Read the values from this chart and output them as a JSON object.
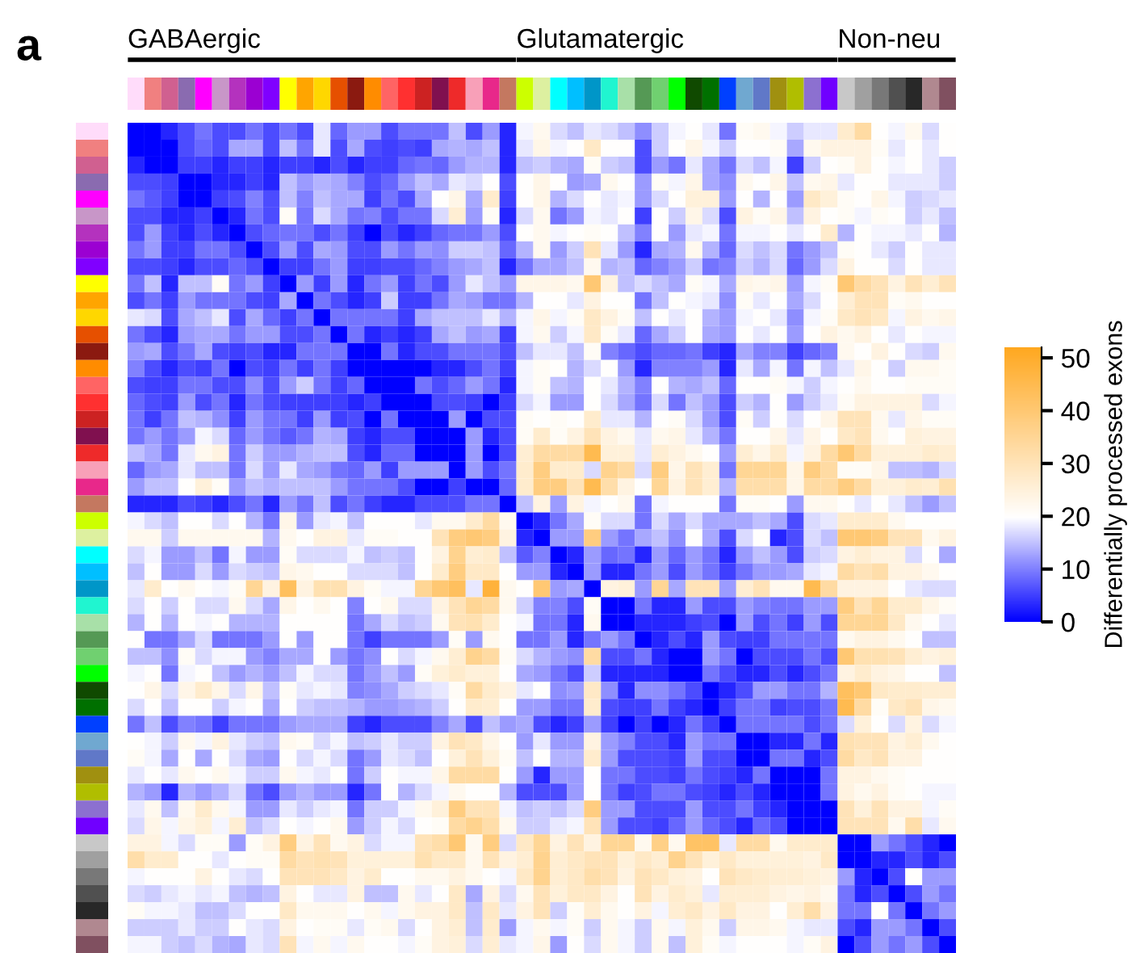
{
  "chart_data": {
    "type": "heatmap",
    "annotations": [
      "a",
      "GABAergic",
      "Glutamatergic",
      "Non-neu"
    ],
    "clabel": "Differentially processed exons",
    "clim": [
      0,
      52
    ],
    "cticks": [
      0,
      10,
      20,
      30,
      40,
      50
    ],
    "categories": [
      null,
      null,
      null,
      null,
      null,
      null,
      null,
      null,
      null,
      null,
      null,
      null,
      null,
      null,
      null,
      null,
      null,
      null,
      null,
      null,
      null,
      null,
      null,
      null,
      null,
      null,
      null,
      null,
      null,
      null,
      null,
      null,
      null,
      null,
      null,
      null,
      null,
      null,
      null,
      null,
      null,
      null,
      null,
      null,
      null,
      null,
      null,
      null,
      null
    ],
    "y_categories": [
      null,
      null,
      null,
      null,
      null,
      null,
      null,
      null,
      null,
      null,
      null,
      null,
      null,
      null,
      null,
      null,
      null,
      null,
      null,
      null,
      null,
      null,
      null,
      null,
      null,
      null,
      null,
      null,
      null,
      null,
      null,
      null,
      null,
      null,
      null,
      null,
      null,
      null,
      null,
      null,
      null,
      null,
      null,
      null,
      null,
      null,
      null,
      null,
      null
    ],
    "cells": [
      [
        0,
        0,
        3,
        6,
        9,
        6,
        6,
        9,
        6,
        9,
        6,
        18,
        8,
        12,
        12,
        6,
        9,
        9,
        9,
        15,
        6,
        12,
        3,
        19,
        22,
        17,
        15,
        18,
        17,
        15,
        11,
        16,
        19,
        20,
        18,
        9,
        21,
        22,
        19,
        16,
        18,
        18,
        27,
        33,
        20,
        19,
        22,
        17,
        20
      ],
      [
        0,
        0,
        0,
        6,
        8,
        6,
        13,
        13,
        6,
        15,
        9,
        18,
        6,
        13,
        6,
        5,
        6,
        5,
        13,
        14,
        13,
        15,
        3,
        18,
        23,
        19,
        20,
        28,
        20,
        20,
        6,
        16,
        20,
        23,
        19,
        16,
        20,
        20,
        21,
        13,
        22,
        24,
        24,
        24,
        21,
        18,
        20,
        18,
        20
      ],
      [
        3,
        0,
        0,
        5,
        5,
        3,
        5,
        5,
        3,
        5,
        5,
        3,
        6,
        3,
        5,
        5,
        8,
        9,
        8,
        12,
        14,
        14,
        3,
        15,
        16,
        14,
        13,
        21,
        16,
        15,
        6,
        12,
        9,
        18,
        13,
        9,
        17,
        15,
        19,
        5,
        16,
        20,
        21,
        24,
        20,
        19,
        20,
        18,
        16
      ],
      [
        6,
        6,
        5,
        0,
        0,
        3,
        3,
        5,
        3,
        15,
        12,
        14,
        13,
        10,
        6,
        8,
        12,
        15,
        13,
        18,
        17,
        20,
        6,
        20,
        23,
        20,
        12,
        13,
        22,
        20,
        12,
        21,
        19,
        23,
        13,
        11,
        22,
        20,
        23,
        15,
        22,
        23,
        18,
        20,
        20,
        18,
        18,
        18,
        16
      ],
      [
        9,
        7,
        5,
        0,
        0,
        5,
        6,
        10,
        6,
        15,
        10,
        15,
        13,
        13,
        5,
        9,
        6,
        13,
        20,
        23,
        13,
        27,
        5,
        20,
        23,
        14,
        17,
        20,
        18,
        19,
        12,
        17,
        20,
        25,
        25,
        12,
        20,
        14,
        20,
        12,
        28,
        25,
        21,
        20,
        23,
        19,
        16,
        17,
        18
      ],
      [
        6,
        6,
        3,
        3,
        5,
        0,
        3,
        9,
        6,
        21,
        9,
        17,
        13,
        9,
        10,
        6,
        9,
        9,
        17,
        26,
        12,
        21,
        3,
        17,
        22,
        9,
        12,
        19,
        18,
        20,
        5,
        20,
        16,
        23,
        17,
        6,
        24,
        21,
        23,
        15,
        24,
        20,
        21,
        19,
        21,
        20,
        16,
        18,
        15
      ],
      [
        6,
        12,
        5,
        3,
        6,
        3,
        0,
        6,
        8,
        9,
        9,
        6,
        9,
        5,
        0,
        6,
        3,
        5,
        8,
        9,
        9,
        12,
        6,
        20,
        22,
        19,
        20,
        21,
        20,
        15,
        10,
        20,
        12,
        18,
        19,
        9,
        19,
        19,
        20,
        18,
        20,
        27,
        14,
        20,
        19,
        19,
        18,
        20,
        14
      ],
      [
        9,
        12,
        5,
        5,
        9,
        9,
        6,
        0,
        6,
        12,
        6,
        13,
        12,
        6,
        6,
        12,
        9,
        12,
        11,
        16,
        16,
        15,
        8,
        14,
        22,
        12,
        16,
        30,
        18,
        12,
        3,
        13,
        14,
        22,
        14,
        8,
        17,
        15,
        17,
        9,
        12,
        15,
        21,
        20,
        18,
        16,
        20,
        18,
        18
      ],
      [
        6,
        6,
        5,
        3,
        6,
        6,
        8,
        6,
        0,
        5,
        5,
        9,
        12,
        5,
        5,
        6,
        6,
        8,
        10,
        12,
        13,
        15,
        3,
        9,
        13,
        13,
        15,
        22,
        14,
        15,
        8,
        10,
        12,
        16,
        9,
        10,
        16,
        14,
        17,
        8,
        12,
        17,
        24,
        20,
        20,
        17,
        20,
        18,
        18
      ],
      [
        9,
        15,
        3,
        15,
        15,
        21,
        9,
        12,
        5,
        0,
        12,
        5,
        12,
        3,
        9,
        12,
        5,
        9,
        6,
        12,
        18,
        15,
        12,
        23,
        23,
        23,
        22,
        40,
        24,
        15,
        17,
        15,
        13,
        21,
        19,
        13,
        23,
        22,
        23,
        12,
        19,
        21,
        40,
        33,
        30,
        24,
        30,
        26,
        30
      ],
      [
        6,
        9,
        5,
        12,
        9,
        9,
        9,
        6,
        5,
        13,
        0,
        9,
        6,
        3,
        5,
        16,
        5,
        5,
        9,
        13,
        12,
        9,
        9,
        14,
        20,
        20,
        18,
        24,
        20,
        20,
        9,
        15,
        20,
        19,
        18,
        11,
        21,
        18,
        20,
        13,
        17,
        20,
        26,
        30,
        30,
        21,
        22,
        20,
        20
      ],
      [
        18,
        17,
        6,
        13,
        15,
        18,
        6,
        13,
        8,
        5,
        9,
        0,
        9,
        9,
        9,
        9,
        5,
        13,
        15,
        15,
        15,
        18,
        14,
        19,
        23,
        19,
        21,
        28,
        24,
        21,
        15,
        20,
        18,
        20,
        14,
        12,
        19,
        20,
        18,
        11,
        19,
        21,
        28,
        30,
        28,
        19,
        24,
        22,
        23
      ],
      [
        9,
        6,
        3,
        12,
        13,
        13,
        9,
        12,
        12,
        6,
        6,
        9,
        0,
        9,
        3,
        5,
        3,
        5,
        13,
        15,
        12,
        13,
        5,
        19,
        22,
        16,
        19,
        28,
        21,
        18,
        8,
        13,
        16,
        20,
        13,
        12,
        20,
        18,
        20,
        12,
        20,
        24,
        22,
        24,
        20,
        18,
        20,
        19,
        19
      ],
      [
        12,
        13,
        6,
        9,
        13,
        6,
        5,
        6,
        3,
        3,
        9,
        9,
        9,
        0,
        0,
        9,
        3,
        6,
        6,
        9,
        9,
        9,
        6,
        15,
        18,
        18,
        15,
        21,
        10,
        8,
        6,
        8,
        8,
        9,
        5,
        3,
        13,
        10,
        10,
        5,
        8,
        10,
        22,
        20,
        24,
        20,
        17,
        16,
        22
      ],
      [
        10,
        6,
        3,
        6,
        5,
        9,
        0,
        6,
        5,
        9,
        5,
        9,
        5,
        0,
        0,
        0,
        0,
        0,
        3,
        3,
        6,
        9,
        5,
        19,
        21,
        20,
        14,
        17,
        20,
        12,
        3,
        10,
        10,
        10,
        12,
        3,
        18,
        13,
        19,
        9,
        19,
        15,
        18,
        23,
        20,
        16,
        22,
        22,
        21
      ],
      [
        6,
        5,
        5,
        9,
        9,
        6,
        6,
        11,
        6,
        12,
        16,
        9,
        5,
        8,
        0,
        0,
        0,
        9,
        6,
        8,
        12,
        9,
        3,
        19,
        21,
        15,
        14,
        20,
        18,
        14,
        10,
        20,
        14,
        13,
        15,
        8,
        20,
        20,
        21,
        19,
        16,
        19,
        20,
        22,
        20,
        20,
        21,
        21,
        21
      ],
      [
        8,
        6,
        5,
        12,
        6,
        9,
        3,
        9,
        6,
        5,
        5,
        5,
        5,
        3,
        5,
        0,
        0,
        0,
        6,
        6,
        5,
        0,
        5,
        17,
        19,
        12,
        12,
        20,
        17,
        13,
        9,
        17,
        9,
        15,
        12,
        6,
        16,
        14,
        20,
        12,
        16,
        18,
        21,
        24,
        24,
        24,
        24,
        17,
        19
      ],
      [
        9,
        5,
        9,
        15,
        14,
        11,
        5,
        12,
        9,
        9,
        5,
        12,
        5,
        6,
        0,
        9,
        0,
        0,
        0,
        12,
        0,
        6,
        6,
        21,
        20,
        21,
        20,
        27,
        18,
        18,
        14,
        20,
        21,
        17,
        12,
        6,
        21,
        16,
        20,
        17,
        20,
        23,
        30,
        30,
        22,
        18,
        23,
        21,
        21
      ],
      [
        9,
        12,
        9,
        12,
        19,
        17,
        8,
        12,
        9,
        7,
        9,
        14,
        13,
        5,
        3,
        6,
        6,
        0,
        0,
        0,
        12,
        3,
        6,
        21,
        27,
        21,
        24,
        30,
        24,
        22,
        18,
        22,
        23,
        18,
        14,
        9,
        20,
        20,
        23,
        18,
        23,
        20,
        28,
        30,
        22,
        20,
        25,
        24,
        24
      ],
      [
        15,
        13,
        9,
        18,
        22,
        24,
        9,
        16,
        12,
        12,
        14,
        15,
        15,
        6,
        3,
        8,
        8,
        0,
        0,
        0,
        12,
        0,
        6,
        26,
        33,
        33,
        33,
        45,
        25,
        25,
        18,
        26,
        24,
        22,
        20,
        12,
        26,
        23,
        27,
        19,
        24,
        33,
        40,
        33,
        25,
        25,
        25,
        27,
        26
      ],
      [
        8,
        12,
        13,
        18,
        15,
        15,
        9,
        17,
        12,
        18,
        13,
        12,
        9,
        8,
        12,
        5,
        12,
        12,
        12,
        0,
        12,
        6,
        9,
        27,
        38,
        27,
        27,
        17,
        36,
        33,
        17,
        38,
        23,
        30,
        26,
        9,
        35,
        35,
        35,
        23,
        38,
        33,
        21,
        21,
        23,
        15,
        15,
        14,
        17
      ],
      [
        12,
        15,
        15,
        20,
        25,
        21,
        12,
        15,
        14,
        15,
        15,
        15,
        12,
        9,
        9,
        9,
        6,
        0,
        0,
        5,
        0,
        0,
        8,
        27,
        38,
        38,
        30,
        45,
        32,
        24,
        20,
        35,
        24,
        30,
        26,
        14,
        32,
        32,
        32,
        23,
        33,
        33,
        38,
        33,
        25,
        25,
        27,
        26,
        31
      ],
      [
        3,
        3,
        3,
        6,
        5,
        3,
        6,
        9,
        3,
        12,
        9,
        15,
        6,
        9,
        5,
        3,
        3,
        6,
        6,
        6,
        9,
        9,
        0,
        15,
        24,
        12,
        24,
        19,
        20,
        22,
        9,
        19,
        20,
        20,
        20,
        9,
        21,
        21,
        20,
        12,
        22,
        22,
        20,
        18,
        20,
        18,
        15,
        12,
        15
      ],
      [
        19,
        17,
        15,
        20,
        20,
        17,
        20,
        14,
        9,
        23,
        12,
        18,
        19,
        15,
        20,
        20,
        20,
        18,
        22,
        22,
        27,
        33,
        22,
        0,
        3,
        9,
        13,
        21,
        17,
        17,
        9,
        17,
        13,
        17,
        13,
        13,
        13,
        15,
        13,
        6,
        17,
        18,
        27,
        27,
        27,
        22,
        20,
        20,
        20
      ],
      [
        22,
        22,
        16,
        22,
        22,
        22,
        22,
        22,
        14,
        22,
        20,
        24,
        24,
        18,
        21,
        21,
        20,
        20,
        30,
        38,
        40,
        38,
        24,
        3,
        0,
        12,
        12,
        38,
        12,
        9,
        13,
        15,
        11,
        20,
        13,
        6,
        17,
        20,
        3,
        6,
        17,
        15,
        40,
        40,
        38,
        30,
        30,
        22,
        24
      ],
      [
        17,
        19,
        12,
        12,
        15,
        9,
        19,
        12,
        12,
        21,
        17,
        17,
        17,
        19,
        15,
        16,
        15,
        20,
        24,
        36,
        26,
        27,
        15,
        7,
        10,
        0,
        3,
        12,
        8,
        9,
        3,
        12,
        8,
        12,
        9,
        3,
        12,
        15,
        12,
        6,
        16,
        17,
        24,
        26,
        24,
        24,
        17,
        20,
        13
      ],
      [
        15,
        20,
        12,
        12,
        17,
        12,
        17,
        16,
        15,
        23,
        22,
        20,
        20,
        17,
        17,
        17,
        15,
        20,
        27,
        38,
        28,
        28,
        20,
        12,
        12,
        3,
        0,
        12,
        3,
        3,
        9,
        12,
        6,
        12,
        9,
        5,
        9,
        12,
        12,
        13,
        18,
        19,
        33,
        30,
        32,
        24,
        24,
        22,
        20
      ],
      [
        18,
        27,
        20,
        22,
        20,
        19,
        21,
        35,
        24,
        43,
        24,
        31,
        31,
        24,
        21,
        19,
        19,
        35,
        40,
        43,
        18,
        48,
        22,
        20,
        40,
        12,
        13,
        0,
        24,
        25,
        12,
        35,
        13,
        30,
        30,
        12,
        26,
        30,
        22,
        22,
        45,
        33,
        24,
        24,
        24,
        20,
        18,
        17,
        17
      ],
      [
        17,
        20,
        16,
        20,
        17,
        17,
        22,
        17,
        13,
        23,
        20,
        22,
        20,
        10,
        20,
        22,
        17,
        17,
        24,
        30,
        35,
        33,
        22,
        16,
        10,
        10,
        6,
        21,
        0,
        0,
        9,
        3,
        3,
        12,
        6,
        6,
        12,
        10,
        9,
        9,
        12,
        12,
        38,
        30,
        35,
        27,
        27,
        23,
        21
      ],
      [
        14,
        20,
        14,
        20,
        19,
        20,
        14,
        14,
        14,
        20,
        20,
        20,
        20,
        9,
        13,
        17,
        15,
        16,
        22,
        30,
        31,
        27,
        20,
        19,
        9,
        9,
        3,
        22,
        0,
        0,
        3,
        3,
        3,
        5,
        6,
        0,
        12,
        6,
        9,
        5,
        12,
        6,
        35,
        35,
        35,
        28,
        22,
        20,
        18
      ],
      [
        20,
        9,
        9,
        13,
        17,
        9,
        9,
        9,
        12,
        20,
        12,
        20,
        20,
        9,
        5,
        9,
        9,
        9,
        12,
        21,
        12,
        22,
        20,
        9,
        9,
        12,
        3,
        9,
        12,
        9,
        0,
        3,
        6,
        3,
        12,
        6,
        5,
        5,
        9,
        9,
        9,
        9,
        22,
        24,
        24,
        22,
        20,
        15,
        15
      ],
      [
        15,
        15,
        11,
        21,
        17,
        19,
        19,
        12,
        10,
        13,
        13,
        20,
        12,
        9,
        11,
        20,
        17,
        19,
        22,
        26,
        36,
        33,
        21,
        17,
        14,
        12,
        11,
        33,
        6,
        6,
        9,
        3,
        0,
        0,
        12,
        9,
        0,
        6,
        6,
        6,
        9,
        6,
        40,
        31,
        31,
        30,
        26,
        24,
        25
      ],
      [
        19,
        20,
        9,
        19,
        20,
        15,
        12,
        14,
        12,
        15,
        19,
        17,
        17,
        9,
        12,
        15,
        12,
        21,
        25,
        27,
        25,
        25,
        20,
        13,
        12,
        9,
        6,
        16,
        3,
        3,
        3,
        3,
        0,
        0,
        9,
        6,
        3,
        3,
        6,
        3,
        6,
        9,
        24,
        27,
        24,
        23,
        20,
        20,
        15
      ],
      [
        20,
        23,
        17,
        23,
        27,
        23,
        17,
        23,
        15,
        21,
        18,
        19,
        18,
        10,
        11,
        13,
        16,
        17,
        18,
        21,
        33,
        27,
        24,
        18,
        20,
        11,
        12,
        28,
        11,
        3,
        11,
        11,
        9,
        6,
        0,
        3,
        6,
        12,
        12,
        9,
        9,
        14,
        43,
        40,
        28,
        27,
        27,
        26,
        26
      ],
      [
        17,
        20,
        15,
        20,
        20,
        16,
        19,
        20,
        13,
        20,
        16,
        15,
        15,
        14,
        12,
        12,
        13,
        14,
        16,
        20,
        27,
        26,
        20,
        12,
        12,
        9,
        9,
        27,
        6,
        5,
        5,
        9,
        5,
        3,
        0,
        5,
        9,
        9,
        5,
        6,
        6,
        9,
        45,
        33,
        21,
        28,
        30,
        23,
        22
      ],
      [
        9,
        15,
        6,
        10,
        9,
        5,
        9,
        9,
        9,
        12,
        13,
        13,
        13,
        5,
        3,
        6,
        6,
        6,
        10,
        13,
        6,
        15,
        12,
        13,
        6,
        3,
        5,
        12,
        5,
        0,
        5,
        0,
        3,
        9,
        5,
        0,
        9,
        9,
        9,
        9,
        6,
        9,
        17,
        25,
        20,
        17,
        24,
        17,
        19
      ],
      [
        20,
        19,
        16,
        22,
        19,
        24,
        18,
        16,
        15,
        22,
        21,
        17,
        19,
        15,
        16,
        18,
        16,
        16,
        24,
        30,
        28,
        23,
        20,
        12,
        18,
        12,
        12,
        24,
        12,
        10,
        6,
        6,
        3,
        12,
        9,
        9,
        0,
        0,
        3,
        3,
        9,
        3,
        31,
        30,
        30,
        24,
        26,
        22,
        20
      ],
      [
        21,
        19,
        13,
        20,
        13,
        20,
        17,
        13,
        12,
        20,
        17,
        19,
        17,
        9,
        12,
        18,
        17,
        15,
        20,
        25,
        30,
        25,
        21,
        15,
        20,
        14,
        14,
        27,
        12,
        6,
        6,
        6,
        5,
        12,
        6,
        6,
        0,
        0,
        9,
        9,
        3,
        6,
        33,
        28,
        30,
        24,
        24,
        20,
        20
      ],
      [
        18,
        20,
        18,
        22,
        20,
        22,
        19,
        16,
        16,
        22,
        19,
        18,
        20,
        9,
        16,
        20,
        19,
        19,
        23,
        33,
        33,
        33,
        20,
        12,
        3,
        12,
        12,
        20,
        9,
        9,
        6,
        6,
        5,
        9,
        6,
        5,
        3,
        9,
        0,
        0,
        0,
        9,
        24,
        24,
        22,
        21,
        20,
        20,
        20
      ],
      [
        14,
        12,
        3,
        14,
        12,
        14,
        17,
        9,
        6,
        12,
        14,
        12,
        12,
        3,
        9,
        20,
        14,
        17,
        19,
        22,
        20,
        20,
        14,
        6,
        6,
        6,
        12,
        20,
        9,
        5,
        6,
        9,
        9,
        6,
        5,
        3,
        6,
        3,
        0,
        0,
        0,
        9,
        24,
        22,
        24,
        21,
        20,
        19,
        19
      ],
      [
        18,
        22,
        15,
        22,
        27,
        22,
        19,
        12,
        12,
        18,
        16,
        18,
        19,
        9,
        16,
        16,
        19,
        22,
        25,
        38,
        30,
        30,
        19,
        15,
        16,
        15,
        17,
        38,
        12,
        12,
        6,
        6,
        6,
        12,
        6,
        6,
        9,
        5,
        3,
        0,
        0,
        0,
        30,
        25,
        30,
        24,
        24,
        19,
        21
      ],
      [
        17,
        23,
        19,
        23,
        25,
        19,
        26,
        15,
        17,
        20,
        19,
        20,
        22,
        12,
        16,
        19,
        17,
        20,
        21,
        33,
        36,
        32,
        22,
        16,
        16,
        18,
        19,
        30,
        12,
        6,
        6,
        5,
        8,
        12,
        8,
        6,
        3,
        8,
        6,
        0,
        0,
        0,
        30,
        30,
        30,
        22,
        32,
        18,
        22
      ],
      [
        24,
        24,
        19,
        17,
        21,
        21,
        12,
        21,
        24,
        38,
        24,
        30,
        22,
        24,
        17,
        19,
        19,
        30,
        32,
        40,
        22,
        38,
        17,
        28,
        35,
        24,
        30,
        24,
        35,
        35,
        22,
        37,
        22,
        42,
        42,
        18,
        33,
        33,
        22,
        27,
        27,
        27,
        0,
        0,
        12,
        9,
        6,
        3,
        0
      ],
      [
        32,
        27,
        27,
        20,
        20,
        18,
        20,
        21,
        21,
        33,
        30,
        31,
        30,
        25,
        25,
        25,
        25,
        31,
        28,
        28,
        22,
        30,
        24,
        26,
        36,
        26,
        28,
        30,
        30,
        25,
        28,
        26,
        36,
        30,
        25,
        28,
        25,
        25,
        25,
        25,
        24,
        28,
        0,
        0,
        3,
        3,
        6,
        3,
        6
      ],
      [
        19,
        20,
        20,
        20,
        24,
        20,
        18,
        17,
        20,
        30,
        30,
        30,
        28,
        24,
        27,
        20,
        20,
        22,
        22,
        24,
        22,
        20,
        19,
        28,
        36,
        26,
        28,
        32,
        30,
        24,
        30,
        28,
        25,
        24,
        20,
        30,
        28,
        27,
        26,
        26,
        25,
        24,
        12,
        3,
        0,
        6,
        20,
        12,
        12
      ],
      [
        17,
        16,
        18,
        19,
        18,
        19,
        15,
        14,
        15,
        24,
        20,
        18,
        18,
        24,
        15,
        15,
        22,
        18,
        20,
        28,
        13,
        24,
        17,
        22,
        30,
        25,
        28,
        28,
        24,
        20,
        30,
        24,
        27,
        25,
        18,
        26,
        26,
        26,
        24,
        23,
        24,
        22,
        9,
        3,
        6,
        0,
        6,
        12,
        9
      ],
      [
        21,
        19,
        19,
        18,
        15,
        15,
        17,
        20,
        20,
        28,
        22,
        22,
        22,
        20,
        22,
        19,
        22,
        24,
        24,
        28,
        15,
        28,
        18,
        24,
        30,
        16,
        21,
        26,
        22,
        20,
        24,
        19,
        26,
        28,
        24,
        28,
        24,
        24,
        20,
        26,
        32,
        24,
        9,
        9,
        20,
        9,
        0,
        9,
        12
      ],
      [
        16,
        16,
        16,
        18,
        16,
        16,
        20,
        18,
        17,
        24,
        20,
        21,
        21,
        18,
        21,
        22,
        17,
        20,
        24,
        26,
        15,
        27,
        12,
        19,
        22,
        19,
        21,
        16,
        22,
        19,
        16,
        22,
        19,
        25,
        22,
        16,
        23,
        23,
        22,
        19,
        18,
        18,
        6,
        3,
        12,
        12,
        9,
        0,
        6
      ],
      [
        19,
        19,
        16,
        15,
        17,
        14,
        13,
        18,
        17,
        30,
        19,
        22,
        19,
        22,
        20,
        20,
        19,
        21,
        24,
        25,
        17,
        26,
        18,
        19,
        23,
        12,
        20,
        17,
        22,
        19,
        16,
        22,
        15,
        25,
        21,
        19,
        20,
        20,
        20,
        19,
        21,
        24,
        0,
        6,
        12,
        9,
        12,
        6,
        0
      ]
    ]
  }
}
